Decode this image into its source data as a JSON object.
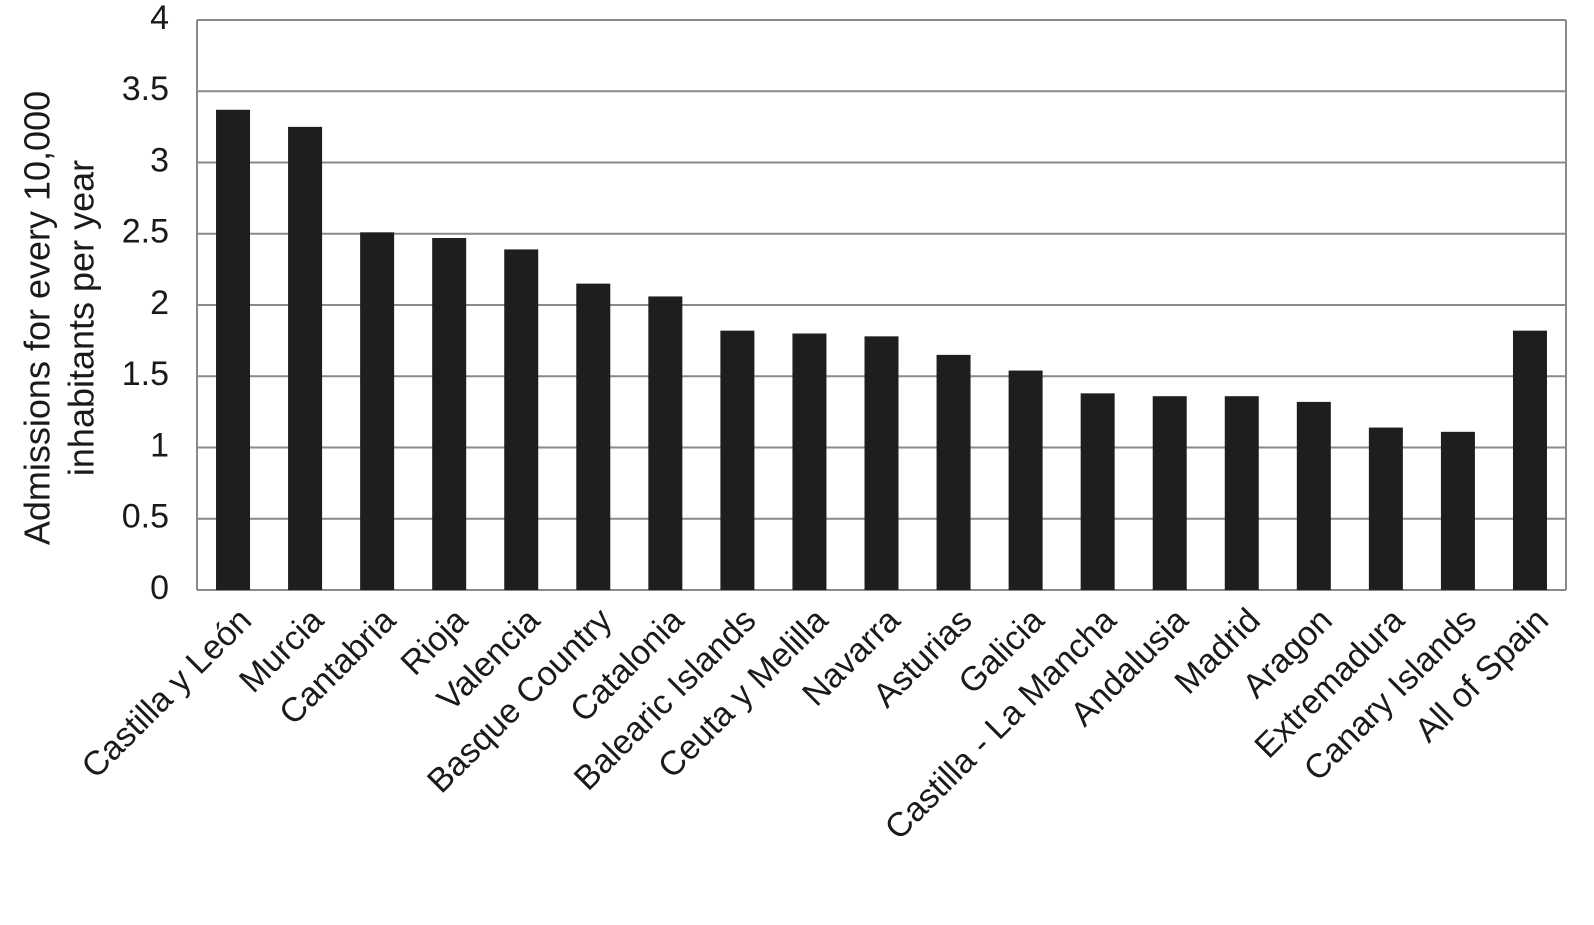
{
  "chart_data": {
    "type": "bar",
    "ylabel": [
      "Admissions for every 10,000",
      "inhabitants per year"
    ],
    "categories": [
      "Castilla y León",
      "Murcia",
      "Cantabria",
      "Rioja",
      "Valencia",
      "Basque Country",
      "Catalonia",
      "Balearic Islands",
      "Ceuta y Melilla",
      "Navarra",
      "Asturias",
      "Galicia",
      "Castilla - La Mancha",
      "Andalusia",
      "Madrid",
      "Aragon",
      "Extremadura",
      "Canary Islands",
      "All of Spain"
    ],
    "values": [
      3.37,
      3.25,
      2.51,
      2.47,
      2.39,
      2.15,
      2.06,
      1.82,
      1.8,
      1.78,
      1.65,
      1.54,
      1.38,
      1.36,
      1.36,
      1.32,
      1.14,
      1.11,
      1.82
    ],
    "color": "#1e1e1e",
    "ylim": [
      0,
      4
    ],
    "yticks": [
      0,
      0.5,
      1,
      1.5,
      2,
      2.5,
      3,
      3.5,
      4
    ],
    "grid": true
  }
}
